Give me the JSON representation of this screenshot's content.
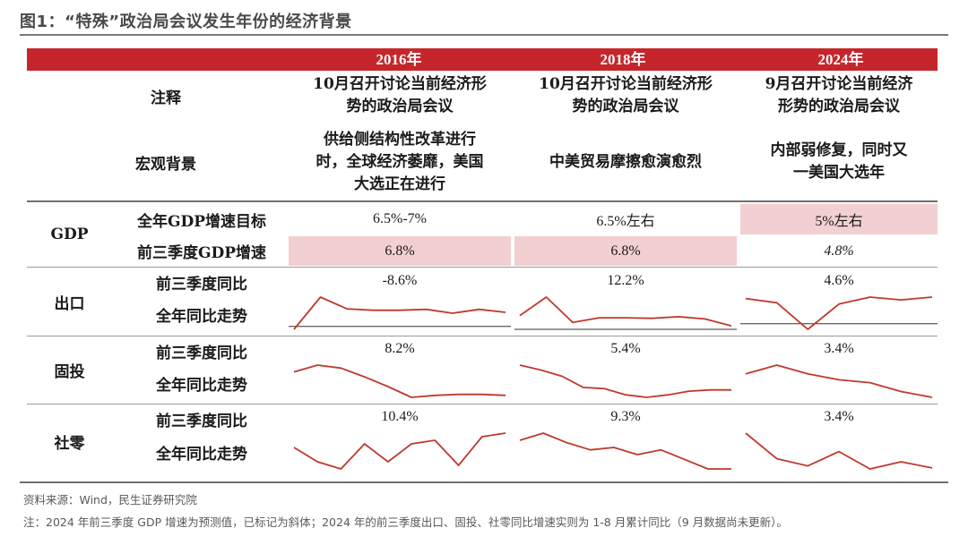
{
  "title": "图1：“特殊”政治局会议发生年份的经济背景",
  "years": [
    "2016年",
    "2018年",
    "2024年"
  ],
  "rows": {
    "note": {
      "label": "注释",
      "values": [
        "10月召开讨论当前经济形势的政治局会议",
        "10月召开讨论当前经济形势的政治局会议",
        "9月召开讨论当前经济形势的政治局会议"
      ],
      "lines": [
        [
          "10月召开讨论当前经济形",
          "势的政治局会议"
        ],
        [
          "10月召开讨论当前经济形",
          "势的政治局会议"
        ],
        [
          "9月召开讨论当前经济",
          "形势的政治局会议"
        ]
      ]
    },
    "macro": {
      "label": "宏观背景",
      "values": [
        "供给侧结构性改革进行时，全球经济萎靡，美国大选正在进行",
        "中美贸易摩擦愈演愈烈",
        "内部弱修复，同时又一美国大选年"
      ],
      "lines": [
        [
          "供给侧结构性改革进行",
          "时，全球经济萎靡，美国",
          "大选正在进行"
        ],
        [
          "中美贸易摩擦愈演愈烈"
        ],
        [
          "内部弱修复，同时又",
          "一美国大选年"
        ]
      ]
    },
    "gdp": {
      "group": "GDP",
      "target_label": "全年GDP增速目标",
      "targets": [
        "6.5%-7%",
        "6.5%左右",
        "5%左右"
      ],
      "ytd_label": "前三季度GDP增速",
      "ytd": [
        "6.8%",
        "6.8%",
        "4.8%"
      ]
    },
    "export": {
      "group": "出口",
      "ytd_label": "前三季度同比",
      "trend_label": "全年同比走势",
      "ytd": [
        "-8.6%",
        "12.2%",
        "4.6%"
      ],
      "trend": [
        [
          -1,
          10,
          6,
          5.5,
          5.5,
          5.8,
          4.5,
          5.8,
          4.8
        ],
        [
          6,
          14,
          3,
          5,
          5,
          4.8,
          5.5,
          4.5,
          1.5
        ],
        [
          9,
          7.5,
          -2,
          7,
          9.5,
          8.5,
          9.5
        ]
      ],
      "baseline": [
        0,
        0,
        0
      ]
    },
    "fai": {
      "group": "固投",
      "ytd_label": "前三季度同比",
      "trend_label": "全年同比走势",
      "ytd": [
        "8.2%",
        "5.4%",
        "3.4%"
      ],
      "trend": [
        [
          10.5,
          11.2,
          10.9,
          10,
          9,
          7.9,
          8.1,
          8.2,
          8.2,
          8.1
        ],
        [
          7.9,
          7.5,
          7,
          6.1,
          6,
          5.5,
          5.3,
          5.5,
          5.8,
          5.9,
          5.9
        ],
        [
          4.2,
          4.5,
          4.2,
          4,
          3.9,
          3.6,
          3.4
        ]
      ]
    },
    "retail": {
      "group": "社零",
      "ytd_label": "前三季度同比",
      "trend_label": "全年同比走势",
      "ytd": [
        "10.4%",
        "9.3%",
        "3.4%"
      ],
      "trend": [
        [
          10.5,
          10.1,
          9.9,
          10.6,
          10.1,
          10.6,
          10.7,
          10,
          10.8,
          10.9
        ],
        [
          9.8,
          10.1,
          9.7,
          9.4,
          9.5,
          9.2,
          9.4,
          9.0,
          8.6,
          8.6
        ],
        [
          5.5,
          3.0,
          2.3,
          3.7,
          2.0,
          2.7,
          2.1
        ]
      ]
    }
  },
  "source": "资料来源：Wind，民生证券研究院",
  "note_footer": "注：2024 年前三季度 GDP 增速为预测值，已标记为斜体；2024 年的前三季度出口、固投、社零同比增速实则为 1-8 月累计同比（9 月数据尚未更新）。",
  "colors": {
    "header": "#c4262b",
    "highlight": "#f2cfd0",
    "line": "#c0392b"
  }
}
